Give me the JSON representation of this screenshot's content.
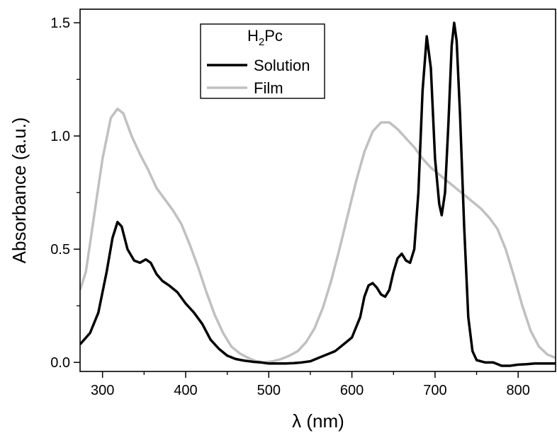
{
  "chart_data": {
    "type": "line",
    "title": "",
    "xlabel": "λ (nm)",
    "ylabel": "Absorbance (a.u.)",
    "xlim": [
      273,
      845
    ],
    "ylim": [
      -0.04,
      1.56
    ],
    "x_ticks": [
      300,
      400,
      500,
      600,
      700,
      800
    ],
    "y_ticks": [
      0.0,
      0.5,
      1.0,
      1.5
    ],
    "x_tick_labels": [
      "300",
      "400",
      "500",
      "600",
      "700",
      "800"
    ],
    "y_tick_labels": [
      "0.0",
      "0.5",
      "1.0",
      "1.5"
    ],
    "grid": false,
    "legend": {
      "title_main": "H",
      "title_sub": "2",
      "title_rest": "Pc",
      "placement": "top-center"
    },
    "series": [
      {
        "name": "Solution",
        "color": "#000000",
        "points": [
          [
            273,
            0.08
          ],
          [
            285,
            0.13
          ],
          [
            295,
            0.22
          ],
          [
            305,
            0.4
          ],
          [
            312,
            0.55
          ],
          [
            318,
            0.62
          ],
          [
            323,
            0.6
          ],
          [
            330,
            0.5
          ],
          [
            338,
            0.45
          ],
          [
            345,
            0.44
          ],
          [
            352,
            0.455
          ],
          [
            358,
            0.44
          ],
          [
            365,
            0.39
          ],
          [
            372,
            0.36
          ],
          [
            380,
            0.34
          ],
          [
            390,
            0.31
          ],
          [
            400,
            0.26
          ],
          [
            410,
            0.22
          ],
          [
            420,
            0.17
          ],
          [
            430,
            0.1
          ],
          [
            440,
            0.06
          ],
          [
            450,
            0.03
          ],
          [
            460,
            0.015
          ],
          [
            470,
            0.008
          ],
          [
            480,
            0.003
          ],
          [
            490,
            0.0
          ],
          [
            500,
            -0.005
          ],
          [
            510,
            -0.005
          ],
          [
            520,
            -0.005
          ],
          [
            530,
            -0.003
          ],
          [
            540,
            0.0
          ],
          [
            550,
            0.005
          ],
          [
            560,
            0.02
          ],
          [
            570,
            0.035
          ],
          [
            580,
            0.05
          ],
          [
            590,
            0.08
          ],
          [
            600,
            0.11
          ],
          [
            610,
            0.2
          ],
          [
            615,
            0.29
          ],
          [
            620,
            0.34
          ],
          [
            625,
            0.35
          ],
          [
            630,
            0.33
          ],
          [
            635,
            0.3
          ],
          [
            640,
            0.29
          ],
          [
            645,
            0.32
          ],
          [
            650,
            0.4
          ],
          [
            655,
            0.46
          ],
          [
            660,
            0.48
          ],
          [
            665,
            0.45
          ],
          [
            670,
            0.44
          ],
          [
            675,
            0.5
          ],
          [
            680,
            0.75
          ],
          [
            685,
            1.2
          ],
          [
            690,
            1.44
          ],
          [
            695,
            1.3
          ],
          [
            700,
            0.9
          ],
          [
            705,
            0.7
          ],
          [
            708,
            0.65
          ],
          [
            712,
            0.75
          ],
          [
            716,
            1.05
          ],
          [
            720,
            1.4
          ],
          [
            723,
            1.5
          ],
          [
            726,
            1.42
          ],
          [
            730,
            1.1
          ],
          [
            735,
            0.6
          ],
          [
            740,
            0.2
          ],
          [
            745,
            0.05
          ],
          [
            750,
            0.01
          ],
          [
            760,
            0.0
          ],
          [
            770,
            0.0
          ],
          [
            780,
            -0.015
          ],
          [
            790,
            -0.015
          ],
          [
            800,
            -0.01
          ],
          [
            810,
            -0.008
          ],
          [
            820,
            -0.005
          ],
          [
            830,
            -0.005
          ],
          [
            845,
            -0.005
          ]
        ]
      },
      {
        "name": "Film",
        "color": "#c0c0c0",
        "points": [
          [
            273,
            0.32
          ],
          [
            280,
            0.4
          ],
          [
            290,
            0.65
          ],
          [
            300,
            0.9
          ],
          [
            310,
            1.08
          ],
          [
            318,
            1.12
          ],
          [
            325,
            1.1
          ],
          [
            335,
            1.0
          ],
          [
            345,
            0.92
          ],
          [
            355,
            0.85
          ],
          [
            365,
            0.77
          ],
          [
            375,
            0.72
          ],
          [
            385,
            0.67
          ],
          [
            395,
            0.61
          ],
          [
            405,
            0.52
          ],
          [
            415,
            0.42
          ],
          [
            425,
            0.31
          ],
          [
            435,
            0.21
          ],
          [
            445,
            0.13
          ],
          [
            455,
            0.07
          ],
          [
            465,
            0.04
          ],
          [
            475,
            0.02
          ],
          [
            485,
            0.005
          ],
          [
            495,
            0.0
          ],
          [
            505,
            0.005
          ],
          [
            515,
            0.015
          ],
          [
            525,
            0.03
          ],
          [
            535,
            0.05
          ],
          [
            545,
            0.09
          ],
          [
            555,
            0.15
          ],
          [
            565,
            0.24
          ],
          [
            575,
            0.36
          ],
          [
            585,
            0.5
          ],
          [
            595,
            0.65
          ],
          [
            605,
            0.8
          ],
          [
            615,
            0.93
          ],
          [
            625,
            1.02
          ],
          [
            635,
            1.06
          ],
          [
            645,
            1.06
          ],
          [
            655,
            1.03
          ],
          [
            665,
            0.99
          ],
          [
            675,
            0.95
          ],
          [
            685,
            0.9
          ],
          [
            695,
            0.86
          ],
          [
            705,
            0.83
          ],
          [
            715,
            0.8
          ],
          [
            725,
            0.77
          ],
          [
            735,
            0.74
          ],
          [
            745,
            0.71
          ],
          [
            755,
            0.68
          ],
          [
            765,
            0.64
          ],
          [
            775,
            0.59
          ],
          [
            785,
            0.5
          ],
          [
            795,
            0.38
          ],
          [
            805,
            0.25
          ],
          [
            815,
            0.14
          ],
          [
            825,
            0.07
          ],
          [
            835,
            0.035
          ],
          [
            845,
            0.02
          ]
        ]
      }
    ]
  }
}
